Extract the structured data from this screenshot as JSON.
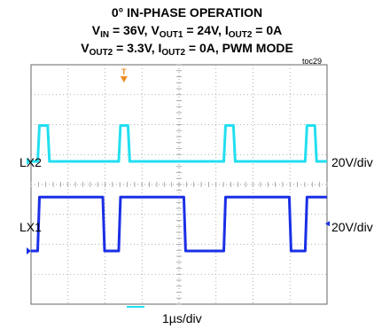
{
  "title": {
    "line1": "0° IN-PHASE OPERATION",
    "line2": [
      {
        "t": "V"
      },
      {
        "t": "IN",
        "sub": true
      },
      {
        "t": " = 36V, V"
      },
      {
        "t": "OUT1",
        "sub": true
      },
      {
        "t": " = 24V, I"
      },
      {
        "t": "OUT2",
        "sub": true
      },
      {
        "t": " = 0A"
      }
    ],
    "line3": [
      {
        "t": "V"
      },
      {
        "t": "OUT2",
        "sub": true
      },
      {
        "t": " = 3.3V, I"
      },
      {
        "t": "OUT2",
        "sub": true
      },
      {
        "t": " = 0A, PWM MODE"
      }
    ]
  },
  "figure_tag": "toc29",
  "colors": {
    "lx2": "#22dff0",
    "lx1": "#1a2fe6",
    "grid": "#9a9a9a",
    "frame": "#666666",
    "trigger": "#f08a1e"
  },
  "chart_data": {
    "type": "line",
    "x_scale": "1µs/div",
    "x_divisions": 8,
    "y_divisions": 8,
    "grid": true,
    "series": [
      {
        "name": "LX2",
        "scale": "20V/div",
        "unit": "V",
        "low": 0,
        "high": 24,
        "pulses": [
          [
            0.18,
            0.45
          ],
          [
            2.37,
            2.62
          ],
          [
            5.21,
            5.47
          ],
          [
            7.41,
            7.67
          ]
        ]
      },
      {
        "name": "LX1",
        "scale": "20V/div",
        "unit": "V",
        "low": 0,
        "high": 36,
        "pulses": [
          [
            0.18,
            1.94
          ],
          [
            2.37,
            4.13
          ],
          [
            5.21,
            6.98
          ],
          [
            7.41,
            8.0
          ]
        ]
      }
    ]
  },
  "labels": {
    "lx2": "LX2",
    "lx1": "LX1",
    "lx2_scale": "20V/div",
    "lx1_scale": "20V/div",
    "time_scale": "1µs/div"
  }
}
